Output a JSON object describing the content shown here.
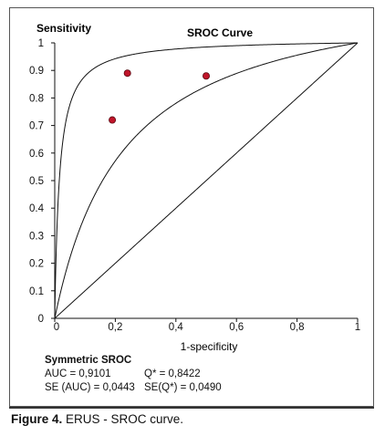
{
  "chart_data": {
    "type": "scatter",
    "title": "SROC Curve",
    "ylabel": "Sensitivity",
    "xlabel": "1-specificity",
    "xlim": [
      0,
      1
    ],
    "ylim": [
      0,
      1
    ],
    "x_ticks": [
      "0",
      "0,2",
      "0,4",
      "0,6",
      "0,8",
      "1"
    ],
    "y_ticks": [
      "0",
      "0.1",
      "0.2",
      "0.3",
      "0.4",
      "0.5",
      "0.6",
      "0.7",
      "0.8",
      "0.9",
      "1"
    ],
    "points": [
      {
        "x": 0.19,
        "y": 0.72
      },
      {
        "x": 0.24,
        "y": 0.89
      },
      {
        "x": 0.5,
        "y": 0.88
      }
    ],
    "curves": [
      {
        "q": 0.985
      },
      {
        "q": 0.8422
      },
      {
        "q": 0.5
      }
    ],
    "point_color": "#c0152a"
  },
  "stats": {
    "heading": "Symmetric SROC",
    "auc": "AUC = 0,9101",
    "q": "Q* = 0,8422",
    "se_auc": "SE (AUC) = 0,0443",
    "se_q": "SE(Q*) = 0,0490"
  },
  "caption": {
    "label": "Figure 4.",
    "text": " ERUS - SROC curve."
  }
}
